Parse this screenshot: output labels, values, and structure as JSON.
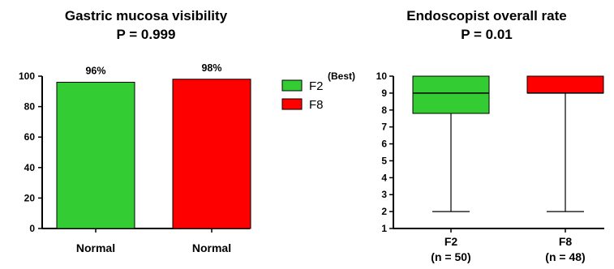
{
  "chart_data": [
    {
      "type": "bar",
      "title": "Gastric mucosa visibility",
      "subtitle": "P = 0.999",
      "categories": [
        "Normal",
        "Normal"
      ],
      "values": [
        96,
        98
      ],
      "data_labels": [
        "96%",
        "98%"
      ],
      "colors": [
        "#33cc33",
        "#ff0000"
      ],
      "ylim": [
        0,
        100
      ],
      "yticks": [
        0,
        20,
        40,
        60,
        80,
        100
      ],
      "ytick_labels": [
        "0",
        "20",
        "40",
        "60",
        "80",
        "100"
      ],
      "grid": false
    },
    {
      "type": "box",
      "title": "Endoscopist overall rate",
      "subtitle": "P = 0.01",
      "categories": [
        "F2",
        "F8"
      ],
      "category_sublabels": [
        "(n = 50)",
        "(n = 48)"
      ],
      "boxes": [
        {
          "whisker_low": 2,
          "q1": 7.8,
          "median": 9,
          "q3": 10,
          "whisker_high": 10
        },
        {
          "whisker_low": 2,
          "q1": 9,
          "median": 9,
          "q3": 10,
          "whisker_high": 10
        }
      ],
      "colors": [
        "#33cc33",
        "#ff0000"
      ],
      "ylim": [
        1,
        10
      ],
      "yticks": [
        1,
        2,
        3,
        4,
        5,
        6,
        7,
        8,
        9,
        10
      ],
      "ytick_labels": [
        "1",
        "2",
        "3",
        "4",
        "5",
        "6",
        "7",
        "8",
        "9",
        "10"
      ],
      "ytop_annotation": "(Best)",
      "grid": false
    }
  ],
  "legend": {
    "placement": "center",
    "items": [
      {
        "label": "F2",
        "color": "#33cc33"
      },
      {
        "label": "F8",
        "color": "#ff0000"
      }
    ]
  }
}
